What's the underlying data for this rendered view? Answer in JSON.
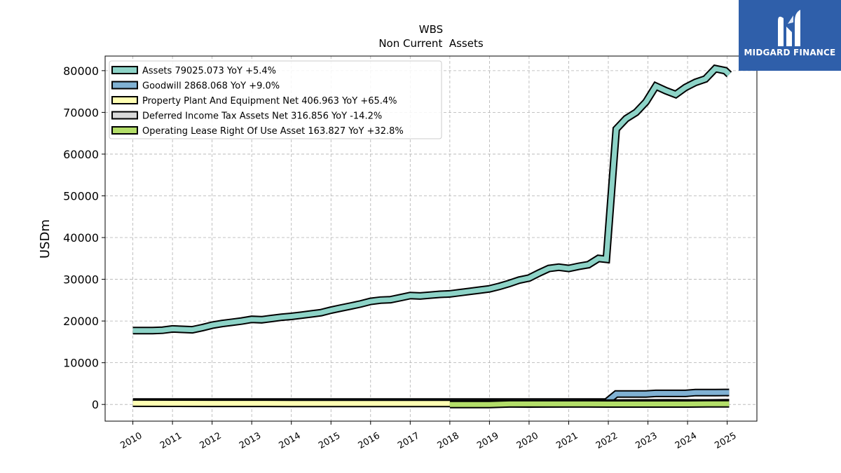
{
  "chart_data": {
    "type": "line",
    "title": "WBS",
    "subtitle": "Non Current  Assets",
    "ylabel": "USDm",
    "xlabel": "",
    "ylim": [
      -4000,
      83500
    ],
    "xlim": [
      2009.3,
      2025.75
    ],
    "grid": true,
    "legend_position": "top-left",
    "yticks": [
      0,
      10000,
      20000,
      30000,
      40000,
      50000,
      60000,
      70000,
      80000
    ],
    "ytick_labels": [
      "0",
      "10000",
      "20000",
      "30000",
      "40000",
      "50000",
      "60000",
      "70000",
      "80000"
    ],
    "xticks": [
      2010,
      2011,
      2012,
      2013,
      2014,
      2015,
      2016,
      2017,
      2018,
      2019,
      2020,
      2021,
      2022,
      2023,
      2024,
      2025
    ],
    "xtick_labels": [
      "2010",
      "2011",
      "2012",
      "2013",
      "2014",
      "2015",
      "2016",
      "2017",
      "2018",
      "2019",
      "2020",
      "2021",
      "2022",
      "2023",
      "2024",
      "2025"
    ],
    "series": [
      {
        "name": "Assets",
        "legend": "Assets  79025.073 YoY +5.4%",
        "color": "#8dd3c7",
        "x": [
          2010.0,
          2010.25,
          2010.5,
          2010.75,
          2011.0,
          2011.25,
          2011.5,
          2011.75,
          2012.0,
          2012.25,
          2012.5,
          2012.75,
          2013.0,
          2013.25,
          2013.5,
          2013.75,
          2014.0,
          2014.25,
          2014.5,
          2014.75,
          2015.0,
          2015.25,
          2015.5,
          2015.75,
          2016.0,
          2016.25,
          2016.5,
          2016.75,
          2017.0,
          2017.25,
          2017.5,
          2017.75,
          2018.0,
          2018.25,
          2018.5,
          2018.75,
          2019.0,
          2019.25,
          2019.5,
          2019.75,
          2020.0,
          2020.25,
          2020.5,
          2020.75,
          2021.0,
          2021.25,
          2021.5,
          2021.75,
          2021.95,
          2022.2,
          2022.45,
          2022.7,
          2022.95,
          2023.2,
          2023.45,
          2023.7,
          2023.95,
          2024.2,
          2024.45,
          2024.7,
          2024.95,
          2025.05
        ],
        "values": [
          17700,
          17700,
          17700,
          17800,
          18100,
          18000,
          17900,
          18400,
          19000,
          19400,
          19700,
          20000,
          20400,
          20300,
          20600,
          20900,
          21100,
          21400,
          21700,
          22000,
          22600,
          23100,
          23600,
          24100,
          24700,
          25000,
          25100,
          25600,
          26100,
          26000,
          26200,
          26400,
          26500,
          26800,
          27100,
          27400,
          27700,
          28300,
          29000,
          29800,
          30300,
          31500,
          32600,
          32900,
          32600,
          33100,
          33500,
          35000,
          34800,
          66000,
          68500,
          70000,
          72500,
          76300,
          75200,
          74300,
          76000,
          77200,
          78000,
          80500,
          80000,
          79100
        ]
      },
      {
        "name": "Goodwill",
        "legend": "Goodwill  2868.068 YoY +9.0%",
        "color": "#80b1d3",
        "x": [
          2010.0,
          2011.0,
          2012.0,
          2013.0,
          2014.0,
          2015.0,
          2016.0,
          2017.0,
          2018.0,
          2019.0,
          2020.0,
          2021.0,
          2021.95,
          2022.2,
          2022.45,
          2022.7,
          2022.95,
          2023.2,
          2023.45,
          2023.7,
          2023.95,
          2024.2,
          2024.45,
          2024.7,
          2024.95,
          2025.05
        ],
        "values": [
          560,
          560,
          560,
          560,
          560,
          560,
          560,
          560,
          560,
          560,
          560,
          560,
          560,
          2500,
          2500,
          2500,
          2500,
          2650,
          2650,
          2650,
          2650,
          2850,
          2850,
          2850,
          2868,
          2868
        ]
      },
      {
        "name": "Property Plant And Equipment Net",
        "legend": "Property Plant And Equipment Net  406.963 YoY +65.4%",
        "color": "#ffffb3",
        "x": [
          2010.0,
          2011.0,
          2012.0,
          2013.0,
          2014.0,
          2015.0,
          2016.0,
          2017.0,
          2018.0,
          2019.0,
          2020.0,
          2021.0,
          2022.0,
          2023.0,
          2024.0,
          2025.05
        ],
        "values": [
          300,
          280,
          270,
          260,
          250,
          250,
          250,
          250,
          250,
          260,
          250,
          246,
          250,
          270,
          300,
          407
        ]
      },
      {
        "name": "Deferred Income Tax Assets Net",
        "legend": "Deferred Income Tax Assets Net  316.856 YoY -14.2%",
        "color": "#d9d9d9",
        "x": [
          2019.0,
          2019.5,
          2020.0,
          2020.5,
          2021.0,
          2021.5,
          2022.0,
          2022.5,
          2023.0,
          2023.5,
          2024.0,
          2024.5,
          2025.05
        ],
        "values": [
          150,
          200,
          100,
          150,
          200,
          250,
          300,
          350,
          370,
          380,
          370,
          340,
          317
        ]
      },
      {
        "name": "Operating Lease Right Of Use Asset",
        "legend": "Operating Lease Right Of Use Asset  163.827 YoY +32.8%",
        "color": "#b3de69",
        "x": [
          2018.0,
          2018.5,
          2019.0,
          2019.5,
          2020.0,
          2020.5,
          2021.0,
          2021.5,
          2022.0,
          2022.5,
          2023.0,
          2023.5,
          2024.0,
          2024.5,
          2025.05
        ],
        "values": [
          0,
          0,
          0,
          130,
          130,
          130,
          125,
          125,
          120,
          120,
          123,
          123,
          123,
          140,
          164
        ]
      }
    ]
  },
  "brand": {
    "name": "MIDGARD FINANCE",
    "background_color": "#2f5faa"
  }
}
